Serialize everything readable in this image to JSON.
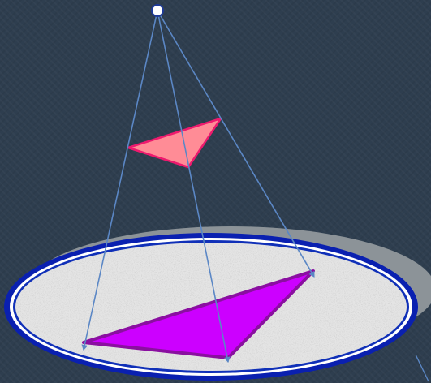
{
  "colors": {
    "background": "#2e3e4f",
    "projection_lines": "#5b87c5",
    "source_point_fill": "#ffffff",
    "source_point_stroke": "#1e3a9a",
    "small_triangle_fill": "#ff8c96",
    "small_triangle_stroke": "#ee1a6e",
    "shadow_triangle_fill": "#cc00ff",
    "shadow_triangle_stroke": "#8a0fa0",
    "screen_fill": "#e4e4e4",
    "screen_border": "#0a20b0",
    "screen_shadow": "#8c9398"
  },
  "icons": {
    "source": "light-source-point-icon"
  }
}
